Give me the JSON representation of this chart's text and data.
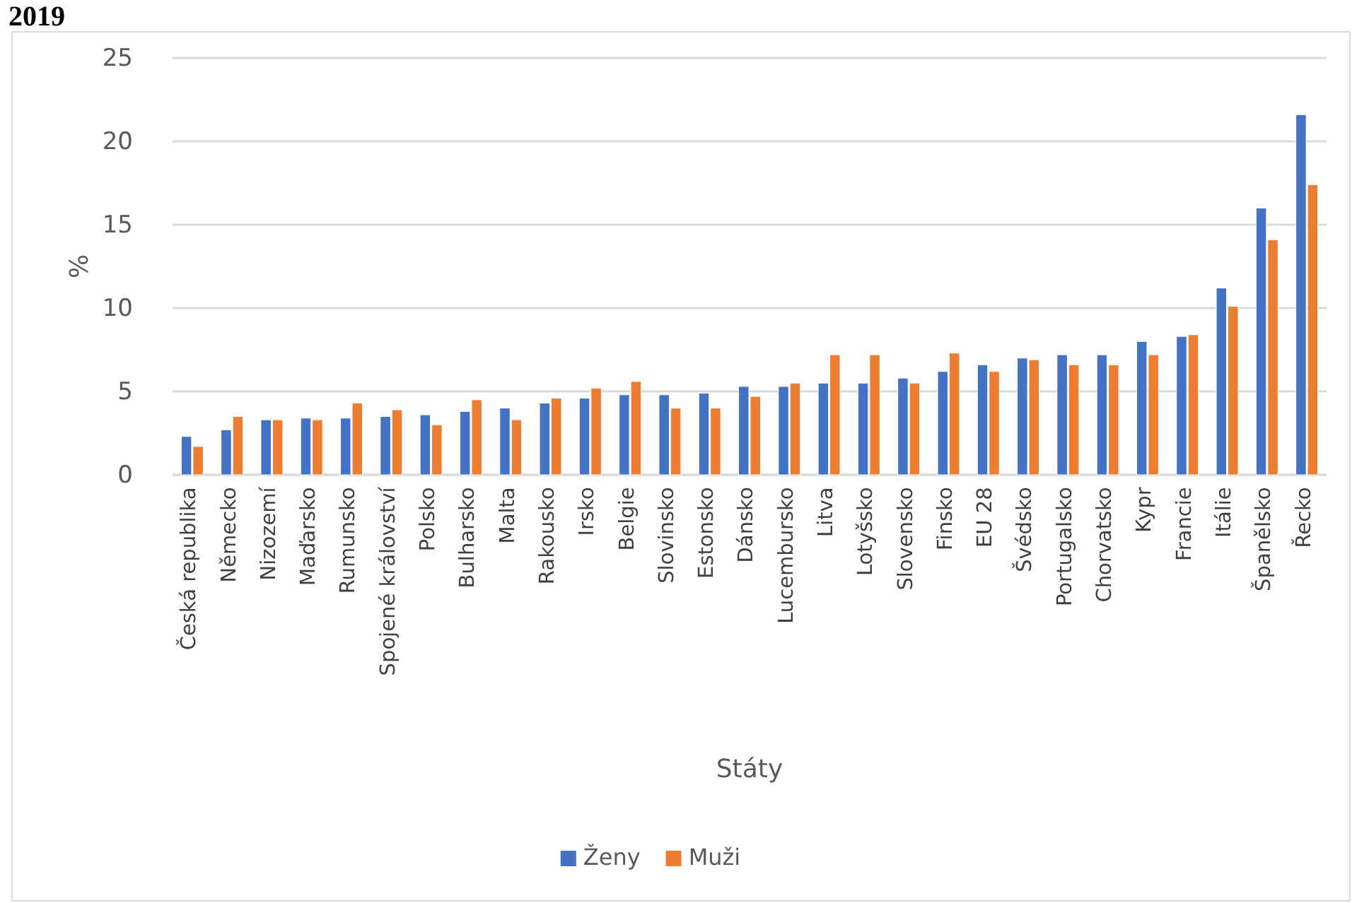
{
  "chart_data": {
    "type": "bar",
    "title": "2019",
    "xlabel": "Státy",
    "ylabel": "%",
    "categories": [
      "Česká republika",
      "Německo",
      "Nizozemí",
      "Maďarsko",
      "Rumunsko",
      "Spojené království",
      "Polsko",
      "Bulharsko",
      "Malta",
      "Rakousko",
      "Irsko",
      "Belgie",
      "Slovinsko",
      "Estonsko",
      "Dánsko",
      "Lucembursko",
      "Litva",
      "Lotyšsko",
      "Slovensko",
      "Finsko",
      "EU 28",
      "Švédsko",
      "Portugalsko",
      "Chorvatsko",
      "Kypr",
      "Francie",
      "Itálie",
      "Španělsko",
      "Řecko"
    ],
    "series": [
      {
        "name": "Ženy",
        "color": "#4472c4",
        "values": [
          2.3,
          2.7,
          3.3,
          3.4,
          3.4,
          3.5,
          3.6,
          3.8,
          4.0,
          4.3,
          4.6,
          4.8,
          4.8,
          4.9,
          5.3,
          5.3,
          5.5,
          5.5,
          5.8,
          6.2,
          6.6,
          7.0,
          7.2,
          7.2,
          8.0,
          8.3,
          11.2,
          16.0,
          21.6
        ]
      },
      {
        "name": "Muži",
        "color": "#ed7d31",
        "values": [
          1.7,
          3.5,
          3.3,
          3.3,
          4.3,
          3.9,
          3.0,
          4.5,
          3.3,
          4.6,
          5.2,
          5.6,
          4.0,
          4.0,
          4.7,
          5.5,
          7.2,
          7.2,
          5.5,
          7.3,
          6.2,
          6.9,
          6.6,
          6.6,
          7.2,
          8.4,
          10.1,
          14.1,
          17.4
        ]
      }
    ],
    "ylim": [
      0,
      25
    ],
    "yticks": [
      0,
      5,
      10,
      15,
      20,
      25
    ],
    "grid": "y",
    "legend": "bottom"
  }
}
